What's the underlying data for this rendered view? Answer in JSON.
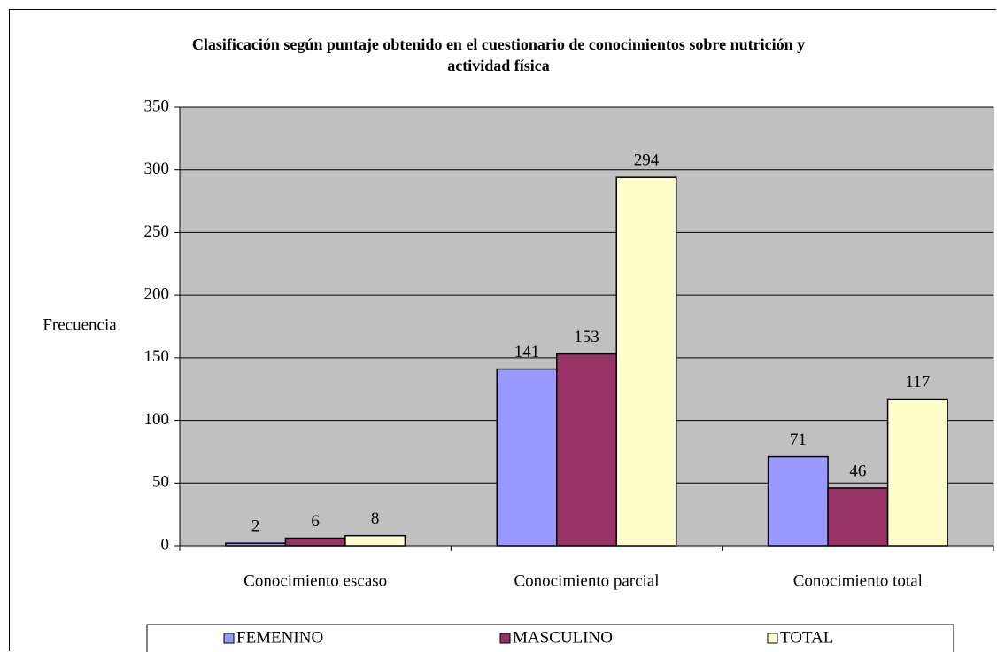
{
  "chart_data": {
    "type": "bar",
    "title": "Clasificación según puntaje obtenido en el cuestionario de conocimientos sobre nutrición y actividad física",
    "y_label": "Frecuencia",
    "categories": [
      "Conocimiento escaso",
      "Conocimiento parcial",
      "Conocimiento total"
    ],
    "series": [
      {
        "name": "FEMENINO",
        "color": "#9999ff",
        "values": [
          2,
          141,
          71
        ]
      },
      {
        "name": "MASCULINO",
        "color": "#993366",
        "values": [
          6,
          153,
          46
        ]
      },
      {
        "name": "TOTAL",
        "color": "#ffffcc",
        "values": [
          8,
          294,
          117
        ]
      }
    ],
    "ylim": [
      0,
      350
    ],
    "yticks": [
      0,
      50,
      100,
      150,
      200,
      250,
      300,
      350
    ],
    "grid": true,
    "legend": "bottom",
    "plot_background": "#c0c0c0"
  }
}
